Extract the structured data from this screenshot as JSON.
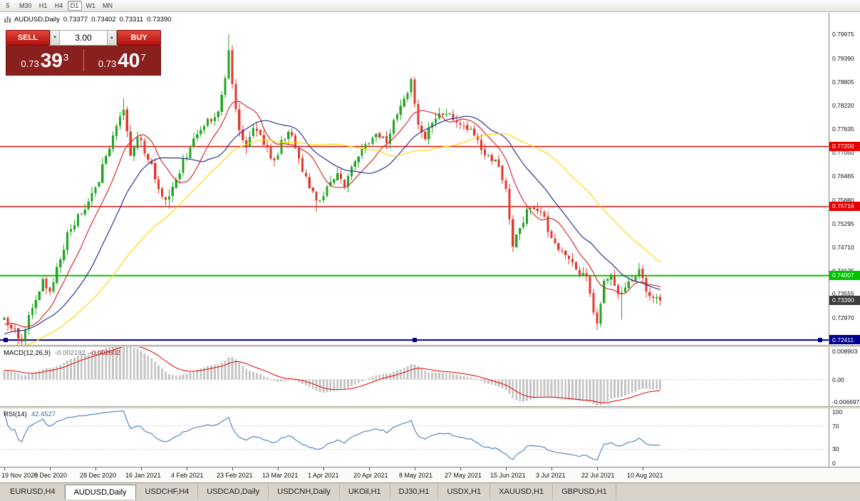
{
  "toolbar": {
    "timeframes": [
      {
        "label": "5"
      },
      {
        "label": "M30"
      },
      {
        "label": "H1"
      },
      {
        "label": "H4"
      },
      {
        "label": "D1",
        "active": true
      },
      {
        "label": "W1"
      },
      {
        "label": "MN"
      }
    ]
  },
  "chart": {
    "symbol": "AUDUSD,Daily",
    "ohlc": {
      "open": "0.73377",
      "high": "0.73402",
      "low": "0.73311",
      "close": "0.73390"
    }
  },
  "trade_panel": {
    "sell_label": "SELL",
    "buy_label": "BUY",
    "volume": "3.00",
    "sell_price": {
      "prefix": "0.73",
      "big": "39",
      "sup": "3"
    },
    "buy_price": {
      "prefix": "0.73",
      "big": "40",
      "sup": "7"
    }
  },
  "price_axis": {
    "labels": [
      "0.79975",
      "0.79390",
      "0.78805",
      "0.78220",
      "0.77635",
      "0.77050",
      "0.76465",
      "0.75880",
      "0.75295",
      "0.74710",
      "0.74125",
      "0.73555",
      "0.72970"
    ],
    "current": {
      "value": "0.73390",
      "color": "#3c3c3c"
    }
  },
  "hlines": [
    {
      "price": 0.772,
      "label": "0.77200",
      "color": "#e60000",
      "width": 1.4
    },
    {
      "price": 0.75716,
      "label": "0.75716",
      "color": "#e60000",
      "width": 1.4
    },
    {
      "price": 0.74007,
      "label": "0.74007",
      "color": "#00c400",
      "width": 2
    },
    {
      "price": 0.72411,
      "label": "0.72411",
      "color": "#000090",
      "width": 2,
      "selected": true
    }
  ],
  "macd": {
    "title": "MACD(12,26,9)",
    "value1": "-0.002192",
    "value2": "-0.002602",
    "axis": [
      "0.008903",
      "0.00",
      "-0.006697"
    ],
    "fast": 12,
    "slow": 26,
    "signal": 9,
    "range": [
      -0.0078,
      0.0095
    ]
  },
  "rsi": {
    "title": "RSI(14)",
    "value": "42.4527",
    "axis": [
      "100",
      "70",
      "30",
      "0"
    ],
    "period": 14,
    "levels": [
      70,
      30
    ]
  },
  "date_axis": {
    "labels": [
      "19 Nov 2020",
      "8 Dec 2020",
      "28 Dec 2020",
      "16 Jan 2021",
      "4 Feb 2021",
      "23 Feb 2021",
      "13 Mar 2021",
      "1 Apr 2021",
      "20 Apr 2021",
      "8 May 2021",
      "27 May 2021",
      "15 Jun 2021",
      "3 Jul 2021",
      "22 Jul 2021",
      "10 Aug 2021"
    ]
  },
  "tabs": [
    {
      "label": "EURUSD,H4"
    },
    {
      "label": "AUDUSD,Daily",
      "active": true
    },
    {
      "label": "USDCHF,H4"
    },
    {
      "label": "USDCAD,Daily"
    },
    {
      "label": "USDCNH,Daily"
    },
    {
      "label": "UKOil,H1"
    },
    {
      "label": "DJ30,H1"
    },
    {
      "label": "USDX,H1"
    },
    {
      "label": "XAUUSD,H1"
    },
    {
      "label": "GBPUSD,H1"
    }
  ],
  "chart_data": {
    "type": "candlestick",
    "symbol": "AUDUSD",
    "period": "Daily",
    "candle_count": 188,
    "tick_step": 13,
    "seed": 12,
    "noise": 0.0016,
    "wick": 0.0016,
    "last_close": 0.7339,
    "price_range": [
      0.7229,
      0.8051
    ],
    "pre_history": {
      "points": 60,
      "start": 0.706
    },
    "waypoints": [
      [
        0,
        0.73
      ],
      [
        2,
        0.7268
      ],
      [
        5,
        0.7245
      ],
      [
        8,
        0.732
      ],
      [
        11,
        0.7385
      ],
      [
        13,
        0.736
      ],
      [
        16,
        0.744
      ],
      [
        19,
        0.752
      ],
      [
        22,
        0.7555
      ],
      [
        26,
        0.762
      ],
      [
        29,
        0.77
      ],
      [
        32,
        0.777
      ],
      [
        34,
        0.7815
      ],
      [
        36,
        0.77
      ],
      [
        38,
        0.7745
      ],
      [
        41,
        0.7695
      ],
      [
        44,
        0.762
      ],
      [
        46,
        0.7585
      ],
      [
        49,
        0.764
      ],
      [
        52,
        0.77
      ],
      [
        55,
        0.7755
      ],
      [
        58,
        0.7785
      ],
      [
        61,
        0.7805
      ],
      [
        63,
        0.789
      ],
      [
        64,
        0.796
      ],
      [
        65,
        0.788
      ],
      [
        67,
        0.776
      ],
      [
        69,
        0.771
      ],
      [
        71,
        0.777
      ],
      [
        73,
        0.7745
      ],
      [
        75,
        0.771
      ],
      [
        77,
        0.768
      ],
      [
        79,
        0.773
      ],
      [
        81,
        0.776
      ],
      [
        83,
        0.772
      ],
      [
        85,
        0.766
      ],
      [
        88,
        0.7605
      ],
      [
        90,
        0.758
      ],
      [
        92,
        0.7615
      ],
      [
        95,
        0.7655
      ],
      [
        97,
        0.7625
      ],
      [
        100,
        0.769
      ],
      [
        103,
        0.772
      ],
      [
        106,
        0.7755
      ],
      [
        109,
        0.7735
      ],
      [
        112,
        0.7805
      ],
      [
        115,
        0.7855
      ],
      [
        116,
        0.7885
      ],
      [
        118,
        0.777
      ],
      [
        120,
        0.7745
      ],
      [
        122,
        0.7785
      ],
      [
        125,
        0.7805
      ],
      [
        128,
        0.779
      ],
      [
        131,
        0.7765
      ],
      [
        134,
        0.7755
      ],
      [
        137,
        0.7705
      ],
      [
        140,
        0.7685
      ],
      [
        143,
        0.7615
      ],
      [
        145,
        0.748
      ],
      [
        147,
        0.752
      ],
      [
        150,
        0.7575
      ],
      [
        153,
        0.756
      ],
      [
        156,
        0.75
      ],
      [
        158,
        0.7465
      ],
      [
        161,
        0.744
      ],
      [
        164,
        0.7405
      ],
      [
        166,
        0.7395
      ],
      [
        168,
        0.731
      ],
      [
        169,
        0.7285
      ],
      [
        171,
        0.739
      ],
      [
        173,
        0.7405
      ],
      [
        175,
        0.735
      ],
      [
        177,
        0.7368
      ],
      [
        179,
        0.739
      ],
      [
        181,
        0.7412
      ],
      [
        183,
        0.7365
      ],
      [
        185,
        0.735
      ],
      [
        187,
        0.7339
      ]
    ],
    "wick_overrides": [
      {
        "i": 5,
        "low": 0.7238
      },
      {
        "i": 34,
        "high": 0.7839
      },
      {
        "i": 47,
        "low": 0.7566
      },
      {
        "i": 64,
        "high": 0.7998
      },
      {
        "i": 89,
        "low": 0.7558
      },
      {
        "i": 116,
        "high": 0.7892
      },
      {
        "i": 145,
        "low": 0.7477
      },
      {
        "i": 169,
        "low": 0.7266
      },
      {
        "i": 176,
        "low": 0.7292
      },
      {
        "i": 181,
        "high": 0.7432
      }
    ],
    "ma": [
      {
        "period": 10,
        "color": "#d03030"
      },
      {
        "period": 22,
        "color": "#283593"
      },
      {
        "period": 45,
        "color": "#ffd700"
      }
    ],
    "colors": {
      "up": "#23a623",
      "down": "#e23a2e",
      "macd_hist": "#c4c4c4",
      "macd_signal": "#e60000",
      "rsi": "#4a7db8"
    }
  }
}
